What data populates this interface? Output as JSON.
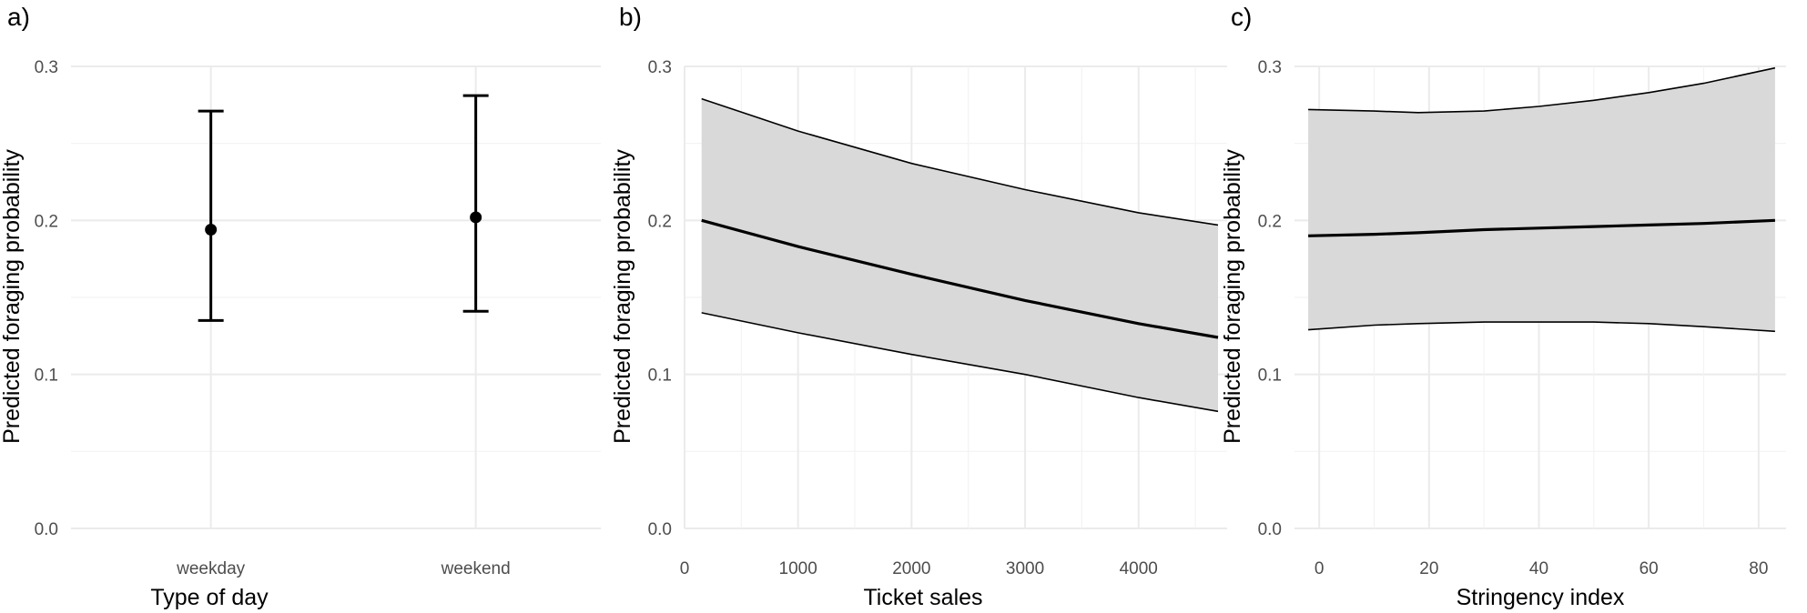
{
  "chart_data": [
    {
      "panel": "a)",
      "type": "errorbar",
      "xlabel": "Type of day",
      "ylabel": "Predicted foraging probability",
      "categories": [
        "weekday",
        "weekend"
      ],
      "estimate": [
        0.194,
        0.202
      ],
      "lower": [
        0.135,
        0.141
      ],
      "upper": [
        0.271,
        0.281
      ],
      "ylim": [
        0.0,
        0.3
      ],
      "yticks": [
        0.0,
        0.1,
        0.2,
        0.3
      ],
      "ytick_labels": [
        "0.0",
        "0.1",
        "0.2",
        "0.3"
      ],
      "grid": true
    },
    {
      "panel": "b)",
      "type": "line",
      "xlabel": "Ticket sales",
      "ylabel": "Predicted foraging probability",
      "x": [
        150,
        1000,
        2000,
        3000,
        4000,
        4700
      ],
      "estimate": [
        0.2,
        0.183,
        0.165,
        0.148,
        0.133,
        0.124
      ],
      "lower": [
        0.14,
        0.127,
        0.113,
        0.1,
        0.085,
        0.076
      ],
      "upper": [
        0.279,
        0.258,
        0.237,
        0.22,
        0.205,
        0.197
      ],
      "xlim": [
        0,
        4780
      ],
      "xticks": [
        0,
        1000,
        2000,
        3000,
        4000
      ],
      "xtick_labels": [
        "0",
        "1000",
        "2000",
        "3000",
        "4000"
      ],
      "ylim": [
        0.0,
        0.3
      ],
      "yticks": [
        0.0,
        0.1,
        0.2,
        0.3
      ],
      "ytick_labels": [
        "0.0",
        "0.1",
        "0.2",
        "0.3"
      ],
      "grid": true
    },
    {
      "panel": "c)",
      "type": "line",
      "xlabel": "Stringency index",
      "ylabel": "Predicted foraging probability",
      "x": [
        -2,
        10,
        18,
        30,
        40,
        50,
        60,
        70,
        83
      ],
      "estimate": [
        0.19,
        0.191,
        0.192,
        0.194,
        0.195,
        0.196,
        0.197,
        0.198,
        0.2
      ],
      "lower": [
        0.129,
        0.132,
        0.133,
        0.134,
        0.134,
        0.134,
        0.133,
        0.131,
        0.128
      ],
      "upper": [
        0.272,
        0.271,
        0.27,
        0.271,
        0.274,
        0.278,
        0.283,
        0.289,
        0.299
      ],
      "xlim": [
        -4.5,
        85
      ],
      "xticks": [
        0,
        20,
        40,
        60,
        80
      ],
      "xtick_labels": [
        "0",
        "20",
        "40",
        "60",
        "80"
      ],
      "ylim": [
        0.0,
        0.3
      ],
      "yticks": [
        0.0,
        0.1,
        0.2,
        0.3
      ],
      "ytick_labels": [
        "0.0",
        "0.1",
        "0.2",
        "0.3"
      ],
      "grid": true
    }
  ]
}
